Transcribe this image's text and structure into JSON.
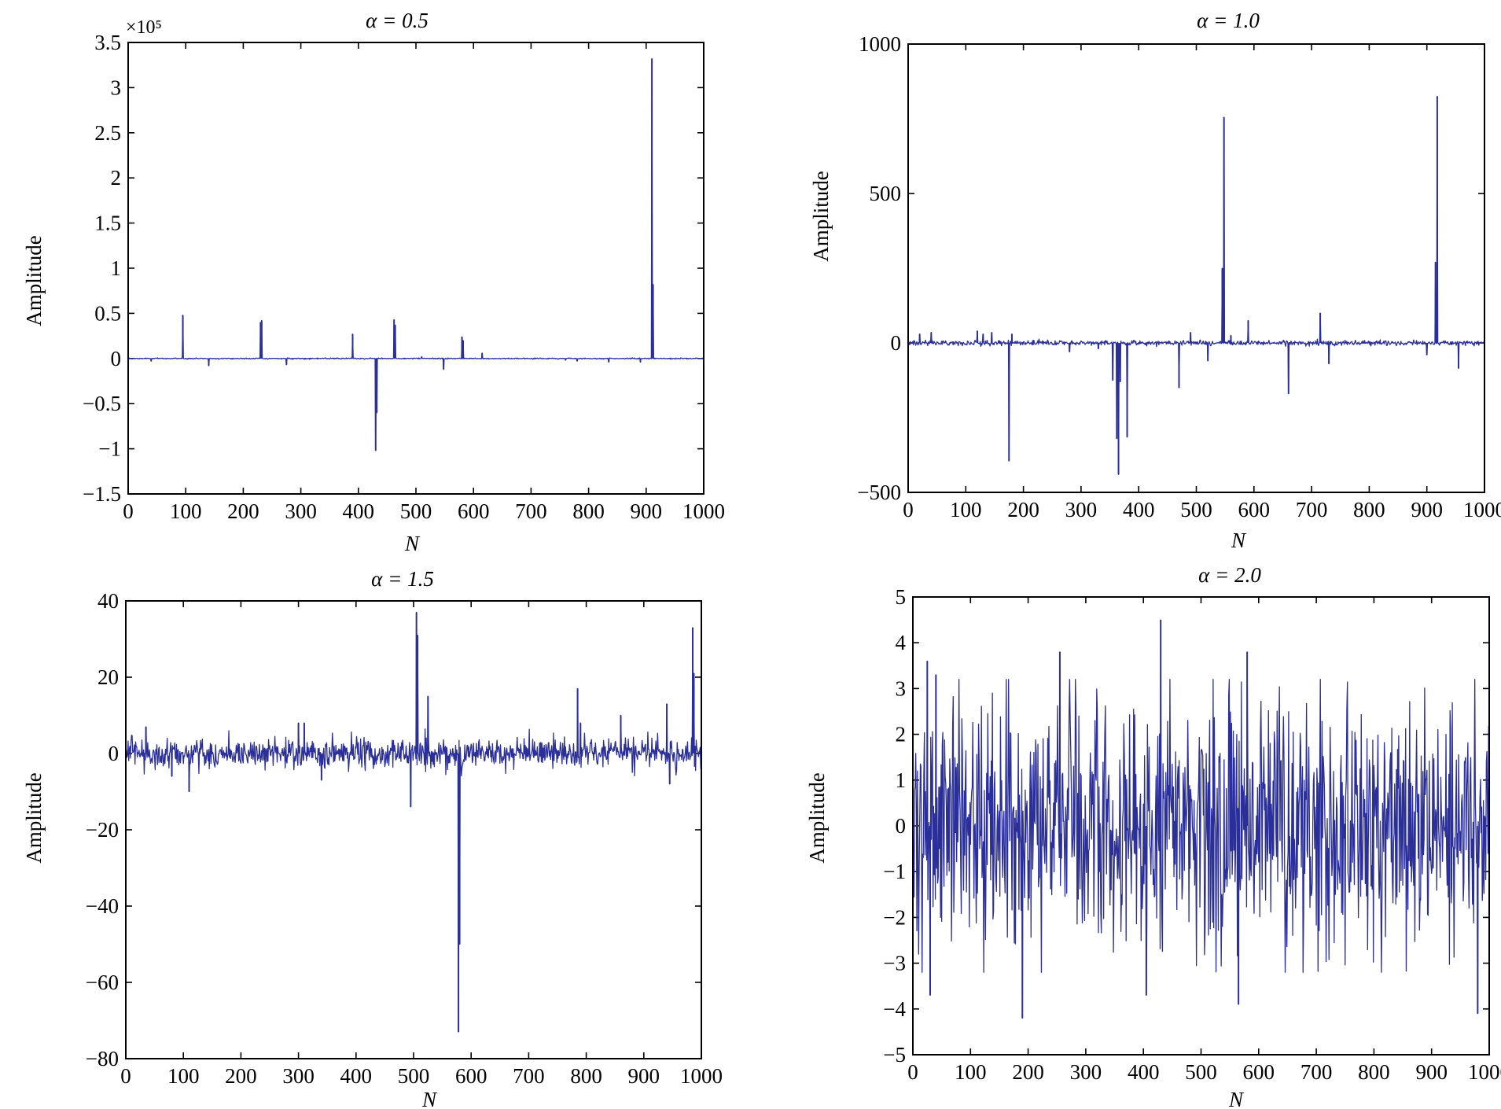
{
  "chart_data": [
    {
      "type": "line",
      "title": "α = 0.5",
      "xlabel": "N",
      "ylabel": "Amplitude",
      "y_multiplier": "×10⁵",
      "xlim": [
        0,
        1000
      ],
      "ylim": [
        -1.5,
        3.5
      ],
      "xticks": [
        0,
        100,
        200,
        300,
        400,
        500,
        600,
        700,
        800,
        900,
        1000
      ],
      "yticks": [
        -1.5,
        -1,
        -0.5,
        0,
        0.5,
        1,
        1.5,
        2,
        2.5,
        3,
        3.5
      ],
      "ytick_labels": [
        "−1.5",
        "−1",
        "−0.5",
        "0",
        "0.5",
        "1",
        "1.5",
        "2",
        "2.5",
        "3",
        "3.5"
      ],
      "noise_level": 0.003,
      "spikes": [
        [
          40,
          -0.03
        ],
        [
          95,
          0.48
        ],
        [
          140,
          -0.08
        ],
        [
          230,
          0.4
        ],
        [
          232,
          0.42
        ],
        [
          275,
          -0.07
        ],
        [
          390,
          0.27
        ],
        [
          430,
          -1.02
        ],
        [
          432,
          -0.6
        ],
        [
          462,
          0.43
        ],
        [
          464,
          0.37
        ],
        [
          510,
          0.02
        ],
        [
          548,
          -0.12
        ],
        [
          580,
          0.24
        ],
        [
          582,
          0.2
        ],
        [
          615,
          0.06
        ],
        [
          760,
          -0.02
        ],
        [
          780,
          -0.03
        ],
        [
          835,
          -0.04
        ],
        [
          890,
          -0.04
        ],
        [
          910,
          3.32
        ],
        [
          912,
          0.82
        ]
      ]
    },
    {
      "type": "line",
      "title": "α = 1.0",
      "xlabel": "N",
      "ylabel": "Amplitude",
      "xlim": [
        0,
        1000
      ],
      "ylim": [
        -500,
        1000
      ],
      "xticks": [
        0,
        100,
        200,
        300,
        400,
        500,
        600,
        700,
        800,
        900,
        1000
      ],
      "yticks": [
        -500,
        0,
        500,
        1000
      ],
      "ytick_labels": [
        "−500",
        "0",
        "500",
        "1000"
      ],
      "noise_level": 4,
      "spikes": [
        [
          20,
          30
        ],
        [
          40,
          35
        ],
        [
          120,
          40
        ],
        [
          130,
          30
        ],
        [
          145,
          35
        ],
        [
          175,
          -395
        ],
        [
          180,
          30
        ],
        [
          280,
          -30
        ],
        [
          330,
          -20
        ],
        [
          355,
          -125
        ],
        [
          362,
          -320
        ],
        [
          365,
          -440
        ],
        [
          368,
          -130
        ],
        [
          380,
          -315
        ],
        [
          470,
          -150
        ],
        [
          490,
          35
        ],
        [
          520,
          -60
        ],
        [
          545,
          250
        ],
        [
          548,
          755
        ],
        [
          560,
          25
        ],
        [
          590,
          75
        ],
        [
          660,
          -170
        ],
        [
          715,
          100
        ],
        [
          730,
          -70
        ],
        [
          900,
          -40
        ],
        [
          915,
          270
        ],
        [
          918,
          825
        ],
        [
          955,
          -85
        ]
      ]
    },
    {
      "type": "line",
      "title": "α = 1.5",
      "xlabel": "N",
      "ylabel": "Amplitude",
      "xlim": [
        0,
        1000
      ],
      "ylim": [
        -80,
        40
      ],
      "xticks": [
        0,
        100,
        200,
        300,
        400,
        500,
        600,
        700,
        800,
        900,
        1000
      ],
      "yticks": [
        -80,
        -60,
        -40,
        -20,
        0,
        20,
        40
      ],
      "ytick_labels": [
        "−80",
        "−60",
        "−40",
        "−20",
        "0",
        "20",
        "40"
      ],
      "noise_level": 2,
      "spikes": [
        [
          35,
          7
        ],
        [
          80,
          -6
        ],
        [
          110,
          -10
        ],
        [
          300,
          8
        ],
        [
          310,
          8
        ],
        [
          340,
          -7
        ],
        [
          495,
          -14
        ],
        [
          505,
          37
        ],
        [
          507,
          31
        ],
        [
          525,
          15
        ],
        [
          578,
          -73
        ],
        [
          580,
          -50
        ],
        [
          785,
          17
        ],
        [
          790,
          8
        ],
        [
          860,
          10
        ],
        [
          940,
          13
        ],
        [
          945,
          -8
        ],
        [
          985,
          33
        ],
        [
          987,
          21
        ]
      ]
    },
    {
      "type": "line",
      "title": "α = 2.0",
      "xlabel": "N",
      "ylabel": "Amplitude",
      "xlim": [
        0,
        1000
      ],
      "ylim": [
        -5,
        5
      ],
      "xticks": [
        0,
        100,
        200,
        300,
        400,
        500,
        600,
        700,
        800,
        900,
        1000
      ],
      "yticks": [
        -5,
        -4,
        -3,
        -2,
        -1,
        0,
        1,
        2,
        3,
        4,
        5
      ],
      "ytick_labels": [
        "−5",
        "−4",
        "−3",
        "−2",
        "−1",
        "0",
        "1",
        "2",
        "3",
        "4",
        "5"
      ],
      "noise_level": 1.35,
      "spikes": [
        [
          25,
          3.6
        ],
        [
          30,
          -3.7
        ],
        [
          40,
          3.3
        ],
        [
          190,
          -4.2
        ],
        [
          255,
          3.8
        ],
        [
          405,
          -3.7
        ],
        [
          430,
          4.5
        ],
        [
          565,
          -3.9
        ],
        [
          580,
          3.8
        ],
        [
          980,
          -4.1
        ]
      ]
    }
  ]
}
